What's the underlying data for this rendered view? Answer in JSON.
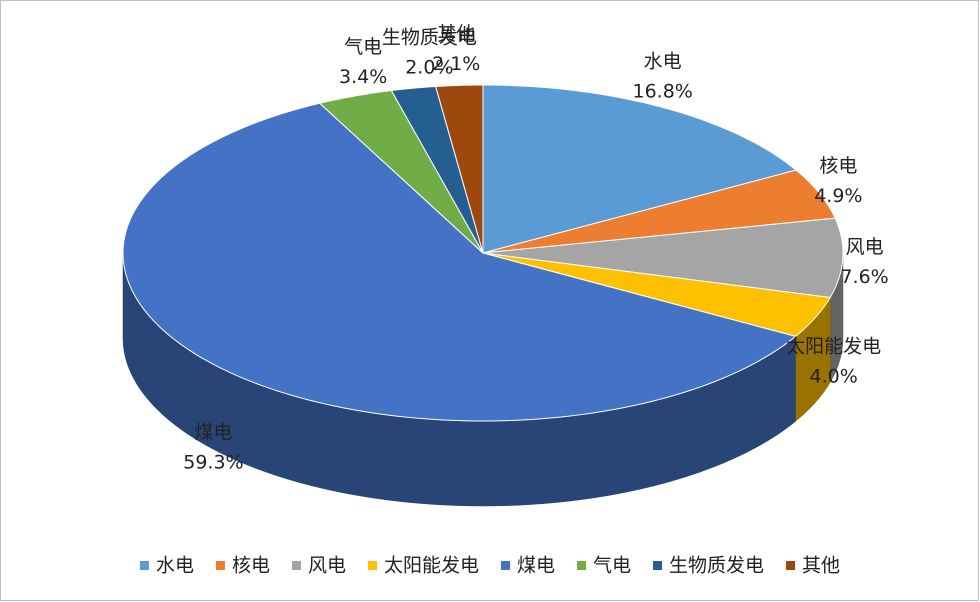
{
  "chart_data": {
    "type": "pie",
    "categories": [
      "水电",
      "核电",
      "风电",
      "太阳能发电",
      "煤电",
      "气电",
      "生物质发电",
      "其他"
    ],
    "values": [
      16.8,
      4.9,
      7.6,
      4.0,
      59.3,
      3.4,
      2.0,
      2.1
    ],
    "value_labels": [
      "16.8%",
      "4.9%",
      "7.6%",
      "4.0%",
      "59.3%",
      "3.4%",
      "2.0%",
      "2.1%"
    ],
    "colors": [
      "#5b9bd5",
      "#ed7d31",
      "#a5a5a5",
      "#ffc000",
      "#4472c4",
      "#70ad47",
      "#255e91",
      "#9e480e"
    ],
    "legend": "bottom"
  }
}
